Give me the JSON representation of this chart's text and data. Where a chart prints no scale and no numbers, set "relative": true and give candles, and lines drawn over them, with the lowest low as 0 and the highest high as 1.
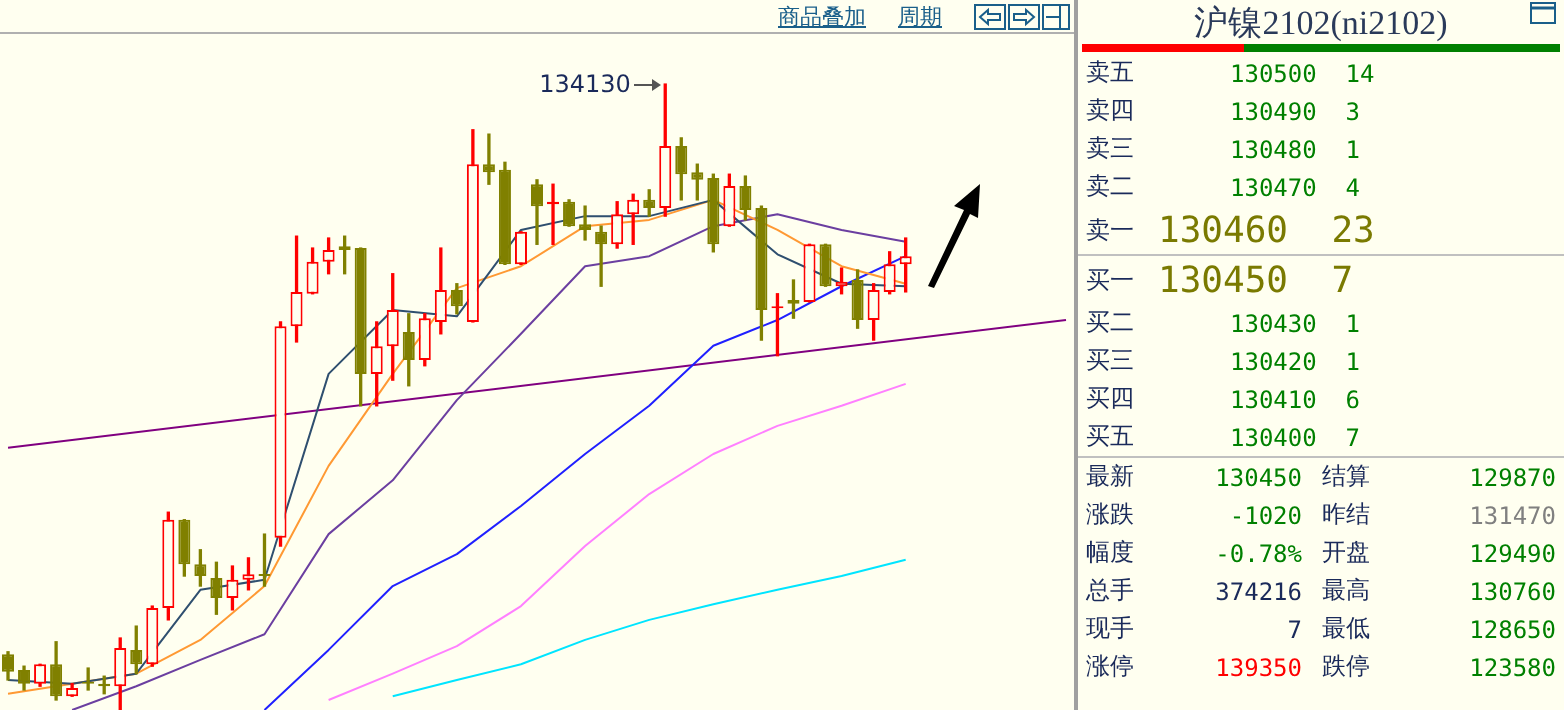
{
  "chart_data": [
    {
      "type": "candlestick",
      "relative": true,
      "categories": [
        null,
        null,
        null,
        null,
        null,
        null,
        null,
        null,
        null,
        null,
        null,
        null,
        null,
        null,
        null,
        null,
        null,
        null,
        null,
        null,
        null,
        null,
        null,
        null,
        null,
        null,
        null,
        null,
        null,
        null,
        null,
        null,
        null,
        null,
        null,
        null,
        null,
        null,
        null,
        null,
        null,
        null,
        null,
        null,
        null,
        null,
        null,
        null,
        null,
        null,
        null,
        null,
        null,
        null,
        null,
        null,
        null,
        null,
        null,
        null,
        null,
        null,
        null,
        null,
        null,
        null,
        null
      ],
      "ohlc": [
        [
          0.089,
          0.093,
          0.048,
          0.061
        ],
        [
          0.064,
          0.07,
          0.032,
          0.042
        ],
        [
          0.042,
          0.073,
          0.038,
          0.073
        ],
        [
          0.073,
          0.109,
          0.016,
          0.022
        ],
        [
          0.022,
          0.042,
          0.022,
          0.035
        ],
        [
          0.045,
          0.067,
          0.032,
          0.042
        ],
        [
          0.042,
          0.054,
          0.026,
          0.038
        ],
        [
          0.038,
          0.115,
          0,
          0.099
        ],
        [
          0.096,
          0.134,
          0.058,
          0.073
        ],
        [
          0.073,
          0.166,
          0.07,
          0.163
        ],
        [
          0.163,
          0.316,
          0.144,
          0.304
        ],
        [
          0.304,
          0.304,
          0.214,
          0.233
        ],
        [
          0.233,
          0.256,
          0.198,
          0.214
        ],
        [
          0.211,
          0.236,
          0.153,
          0.179
        ],
        [
          0.179,
          0.23,
          0.16,
          0.208
        ],
        [
          0.208,
          0.243,
          0.192,
          0.217
        ],
        [
          0.217,
          0.281,
          0.198,
          0.214
        ],
        [
          0.275,
          0.62,
          0.262,
          0.613
        ],
        [
          0.613,
          0.757,
          0.588,
          0.668
        ],
        [
          0.665,
          0.738,
          0.665,
          0.716
        ],
        [
          0.716,
          0.754,
          0.697,
          0.735
        ],
        [
          0.741,
          0.757,
          0.697,
          0.735
        ],
        [
          0.738,
          0.738,
          0.486,
          0.537
        ],
        [
          0.537,
          0.62,
          0.486,
          0.581
        ],
        [
          0.581,
          0.697,
          0.527,
          0.639
        ],
        [
          0.604,
          0.633,
          0.518,
          0.559
        ],
        [
          0.559,
          0.633,
          0.55,
          0.626
        ],
        [
          0.62,
          0.738,
          0.601,
          0.671
        ],
        [
          0.671,
          0.681,
          0.633,
          0.645
        ],
        [
          0.62,
          0.927,
          0.62,
          0.872
        ],
        [
          0.872,
          0.92,
          0.84,
          0.859
        ],
        [
          0.863,
          0.875,
          0.712,
          0.712
        ],
        [
          0.712,
          0.764,
          0.712,
          0.764
        ],
        [
          0.84,
          0.847,
          0.744,
          0.805
        ],
        [
          0.808,
          0.84,
          0.744,
          0.812
        ],
        [
          0.812,
          0.815,
          0.773,
          0.773
        ],
        [
          0.776,
          0.805,
          0.751,
          0.767
        ],
        [
          0.764,
          0.773,
          0.677,
          0.744
        ],
        [
          0.744,
          0.812,
          0.738,
          0.792
        ],
        [
          0.792,
          0.824,
          0.744,
          0.815
        ],
        [
          0.815,
          0.831,
          0.789,
          0.802
        ],
        [
          0.802,
          1,
          0.789,
          0.901
        ],
        [
          0.901,
          0.914,
          0.815,
          0.856
        ],
        [
          0.859,
          0.872,
          0.815,
          0.847
        ],
        [
          0.85,
          0.856,
          0.732,
          0.744
        ],
        [
          0.773,
          0.856,
          0.773,
          0.837
        ],
        [
          0.837,
          0.853,
          0.783,
          0.799
        ],
        [
          0.802,
          0.805,
          0.591,
          0.639
        ],
        [
          0.642,
          0.665,
          0.566,
          0.645
        ],
        [
          0.655,
          0.687,
          0.626,
          0.649
        ],
        [
          0.652,
          0.744,
          0.652,
          0.744
        ],
        [
          0.744,
          0.744,
          0.677,
          0.677
        ],
        [
          0.677,
          0.706,
          0.665,
          0.684
        ],
        [
          0.687,
          0.703,
          0.61,
          0.623
        ],
        [
          0.623,
          0.681,
          0.591,
          0.671
        ],
        [
          0.668,
          0.732,
          0.665,
          0.712
        ],
        [
          0.712,
          0.754,
          0.668,
          0.725
        ],
        null,
        null,
        null,
        null,
        null,
        null,
        null,
        null,
        null,
        null
      ],
      "series": [
        {
          "type": "line",
          "color": "#2f4f6f",
          "values": [
            0.048,
            null,
            null,
            null,
            0.042,
            null,
            null,
            null,
            0.058,
            null,
            null,
            null,
            0.192,
            null,
            null,
            null,
            0.208,
            null,
            null,
            null,
            0.537,
            null,
            null,
            null,
            0.639,
            null,
            null,
            null,
            0.629,
            null,
            null,
            null,
            0.767,
            null,
            null,
            null,
            0.789,
            null,
            null,
            null,
            0.789,
            null,
            null,
            null,
            0.815,
            null,
            null,
            null,
            0.728,
            null,
            null,
            null,
            0.681,
            null,
            null,
            null,
            0.677,
            null,
            null,
            null,
            null,
            null,
            null,
            null,
            null,
            null,
            null
          ]
        },
        {
          "type": "line",
          "color": "#ff9933",
          "values": [
            0.026,
            null,
            null,
            null,
            0.042,
            null,
            null,
            null,
            0.058,
            null,
            null,
            null,
            0.112,
            null,
            null,
            null,
            0.198,
            null,
            null,
            null,
            0.39,
            null,
            null,
            null,
            0.537,
            null,
            null,
            null,
            0.674,
            null,
            null,
            null,
            0.709,
            null,
            null,
            null,
            0.773,
            null,
            null,
            null,
            0.783,
            null,
            null,
            null,
            0.815,
            null,
            null,
            null,
            0.767,
            null,
            null,
            null,
            0.709,
            null,
            null,
            null,
            0.681,
            null,
            null,
            null,
            null,
            null,
            null,
            null,
            null,
            null,
            null
          ]
        },
        {
          "type": "line",
          "color": "#6b3fa0",
          "values": [
            null,
            null,
            null,
            null,
            0,
            null,
            null,
            null,
            0.038,
            null,
            null,
            null,
            0.08,
            null,
            null,
            null,
            0.121,
            null,
            null,
            null,
            0.281,
            null,
            null,
            null,
            0.367,
            null,
            null,
            null,
            0.495,
            null,
            null,
            null,
            0.601,
            null,
            null,
            null,
            0.709,
            null,
            null,
            null,
            0.725,
            null,
            null,
            null,
            0.773,
            null,
            null,
            null,
            0.792,
            null,
            null,
            null,
            0.767,
            null,
            null,
            null,
            0.748,
            null,
            null,
            null,
            null,
            null,
            null,
            null,
            null,
            null,
            null
          ]
        },
        {
          "type": "line",
          "color": "#2020ff",
          "values": [
            null,
            null,
            null,
            null,
            null,
            null,
            null,
            null,
            null,
            null,
            null,
            null,
            null,
            null,
            null,
            null,
            0,
            null,
            null,
            null,
            0.096,
            null,
            null,
            null,
            0.198,
            null,
            null,
            null,
            0.249,
            null,
            null,
            null,
            0.326,
            null,
            null,
            null,
            0.409,
            null,
            null,
            null,
            0.486,
            null,
            null,
            null,
            0.582,
            null,
            null,
            null,
            0.623,
            null,
            null,
            null,
            0.677,
            null,
            null,
            null,
            0.725,
            null,
            null,
            null,
            null,
            null,
            null,
            null,
            null,
            null,
            null
          ]
        },
        {
          "type": "line",
          "color": "#ff80ff",
          "values": [
            null,
            null,
            null,
            null,
            null,
            null,
            null,
            null,
            null,
            null,
            null,
            null,
            null,
            null,
            null,
            null,
            null,
            null,
            null,
            null,
            0.016,
            null,
            null,
            null,
            0.058,
            null,
            null,
            null,
            0.102,
            null,
            null,
            null,
            0.166,
            null,
            null,
            null,
            0.262,
            null,
            null,
            null,
            0.345,
            null,
            null,
            null,
            0.409,
            null,
            null,
            null,
            0.454,
            null,
            null,
            null,
            0.486,
            null,
            null,
            null,
            0.521,
            null,
            null,
            null,
            null,
            null,
            null,
            null,
            null,
            null,
            null
          ]
        },
        {
          "type": "line",
          "color": "#00e5ff",
          "values": [
            null,
            null,
            null,
            null,
            null,
            null,
            null,
            null,
            null,
            null,
            null,
            null,
            null,
            null,
            null,
            null,
            null,
            null,
            null,
            null,
            null,
            null,
            null,
            null,
            0.022,
            null,
            null,
            null,
            0.048,
            null,
            null,
            null,
            0.073,
            null,
            null,
            null,
            0.112,
            null,
            null,
            null,
            0.144,
            null,
            null,
            null,
            0.169,
            null,
            null,
            null,
            0.192,
            null,
            null,
            null,
            0.214,
            null,
            null,
            null,
            0.24,
            null,
            null,
            null,
            null,
            null,
            null,
            null,
            null,
            null,
            null
          ]
        },
        {
          "type": "line",
          "color": "#800080",
          "values": [
            0.419,
            null,
            null,
            null,
            null,
            null,
            null,
            null,
            null,
            null,
            null,
            null,
            null,
            null,
            null,
            null,
            null,
            null,
            null,
            null,
            null,
            null,
            null,
            null,
            null,
            null,
            null,
            null,
            null,
            null,
            null,
            null,
            null,
            null,
            null,
            null,
            null,
            null,
            null,
            null,
            null,
            null,
            null,
            null,
            null,
            null,
            null,
            null,
            null,
            null,
            null,
            null,
            null,
            null,
            null,
            null,
            null,
            null,
            null,
            null,
            null,
            null,
            null,
            null,
            null,
            null,
            0.623
          ]
        }
      ],
      "annotations": [
        "商品叠加",
        "周期",
        "134130"
      ]
    },
    {
      "type": "other",
      "title": "沪镍2102(ni2102)",
      "annotations": [
        "卖五 130500 14",
        "卖四 130490 3",
        "卖三 130480 1",
        "卖二 130470 4",
        "卖一 130460 23",
        "买一 130450 7",
        "买二 130430 1",
        "买三 130420 1",
        "买四 130410 6",
        "买五 130400 7",
        "最新 130450 结算 129870",
        "涨跌 -1020 昨结 131470",
        "幅度 -0.78% 开盘 129490",
        "总手 374216 最高 130760",
        "现手 7 最低 128650",
        "涨停 139350 跌停 123580"
      ]
    }
  ]
}
